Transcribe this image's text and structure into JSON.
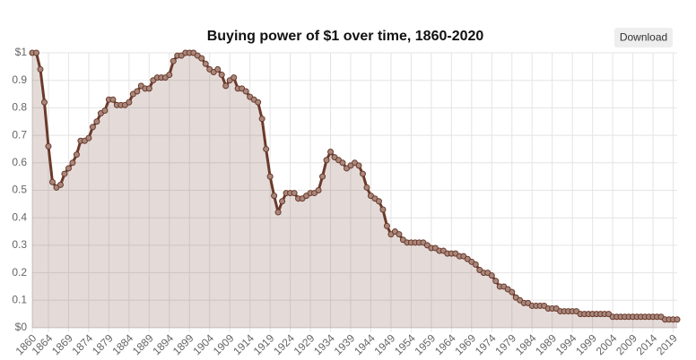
{
  "ui": {
    "download": "Download"
  },
  "chart_data": {
    "type": "line",
    "title": "Buying power of $1 over time, 1860-2020",
    "x": [
      1860,
      1861,
      1862,
      1863,
      1864,
      1865,
      1866,
      1867,
      1868,
      1869,
      1870,
      1871,
      1872,
      1873,
      1874,
      1875,
      1876,
      1877,
      1878,
      1879,
      1880,
      1881,
      1882,
      1883,
      1884,
      1885,
      1886,
      1887,
      1888,
      1889,
      1890,
      1891,
      1892,
      1893,
      1894,
      1895,
      1896,
      1897,
      1898,
      1899,
      1900,
      1901,
      1902,
      1903,
      1904,
      1905,
      1906,
      1907,
      1908,
      1909,
      1910,
      1911,
      1912,
      1913,
      1914,
      1915,
      1916,
      1917,
      1918,
      1919,
      1920,
      1921,
      1922,
      1923,
      1924,
      1925,
      1926,
      1927,
      1928,
      1929,
      1930,
      1931,
      1932,
      1933,
      1934,
      1935,
      1936,
      1937,
      1938,
      1939,
      1940,
      1941,
      1942,
      1943,
      1944,
      1945,
      1946,
      1947,
      1948,
      1949,
      1950,
      1951,
      1952,
      1953,
      1954,
      1955,
      1956,
      1957,
      1958,
      1959,
      1960,
      1961,
      1962,
      1963,
      1964,
      1965,
      1966,
      1967,
      1968,
      1969,
      1970,
      1971,
      1972,
      1973,
      1974,
      1975,
      1976,
      1977,
      1978,
      1979,
      1980,
      1981,
      1982,
      1983,
      1984,
      1985,
      1986,
      1987,
      1988,
      1989,
      1990,
      1991,
      1992,
      1993,
      1994,
      1995,
      1996,
      1997,
      1998,
      1999,
      2000,
      2001,
      2002,
      2003,
      2004,
      2005,
      2006,
      2007,
      2008,
      2009,
      2010,
      2011,
      2012,
      2013,
      2014,
      2015,
      2016,
      2017,
      2018,
      2019,
      2020
    ],
    "values": [
      1,
      1,
      0.94,
      0.82,
      0.66,
      0.53,
      0.51,
      0.52,
      0.56,
      0.58,
      0.6,
      0.63,
      0.68,
      0.68,
      0.69,
      0.73,
      0.75,
      0.78,
      0.79,
      0.83,
      0.83,
      0.81,
      0.81,
      0.81,
      0.82,
      0.85,
      0.86,
      0.88,
      0.87,
      0.87,
      0.9,
      0.91,
      0.91,
      0.91,
      0.92,
      0.97,
      0.99,
      0.99,
      1,
      1,
      1,
      0.99,
      0.98,
      0.96,
      0.94,
      0.93,
      0.94,
      0.92,
      0.88,
      0.9,
      0.91,
      0.87,
      0.87,
      0.86,
      0.84,
      0.83,
      0.82,
      0.76,
      0.65,
      0.55,
      0.48,
      0.42,
      0.46,
      0.49,
      0.49,
      0.49,
      0.47,
      0.47,
      0.48,
      0.49,
      0.49,
      0.5,
      0.55,
      0.61,
      0.64,
      0.62,
      0.61,
      0.6,
      0.58,
      0.59,
      0.6,
      0.59,
      0.56,
      0.51,
      0.48,
      0.47,
      0.46,
      0.43,
      0.37,
      0.34,
      0.35,
      0.34,
      0.32,
      0.31,
      0.31,
      0.31,
      0.31,
      0.31,
      0.3,
      0.29,
      0.29,
      0.28,
      0.28,
      0.27,
      0.27,
      0.27,
      0.26,
      0.26,
      0.25,
      0.24,
      0.23,
      0.21,
      0.2,
      0.2,
      0.19,
      0.17,
      0.15,
      0.15,
      0.14,
      0.13,
      0.11,
      0.1,
      0.09,
      0.09,
      0.08,
      0.08,
      0.08,
      0.08,
      0.07,
      0.07,
      0.07,
      0.06,
      0.06,
      0.06,
      0.06,
      0.06,
      0.05,
      0.05,
      0.05,
      0.05,
      0.05,
      0.05,
      0.05,
      0.05,
      0.04,
      0.04,
      0.04,
      0.04,
      0.04,
      0.04,
      0.04,
      0.04,
      0.04,
      0.04,
      0.04,
      0.04,
      0.04,
      0.03,
      0.03,
      0.03,
      0.03
    ],
    "color": "#6b3a2a",
    "xlim": [
      1860,
      2020
    ],
    "xticks": [
      1860,
      1864,
      1869,
      1874,
      1879,
      1884,
      1889,
      1894,
      1899,
      1904,
      1909,
      1914,
      1919,
      1924,
      1929,
      1934,
      1939,
      1944,
      1949,
      1954,
      1959,
      1964,
      1969,
      1974,
      1979,
      1984,
      1989,
      1994,
      1999,
      2004,
      2009,
      2014,
      2019
    ],
    "ylim": [
      0,
      1
    ],
    "yticks": [
      {
        "value": 0,
        "label": "$0"
      },
      0.1,
      0.2,
      0.3,
      0.4,
      0.5,
      0.6,
      0.7,
      0.8,
      0.9,
      {
        "value": 1,
        "label": "$1"
      }
    ],
    "grid": true
  }
}
